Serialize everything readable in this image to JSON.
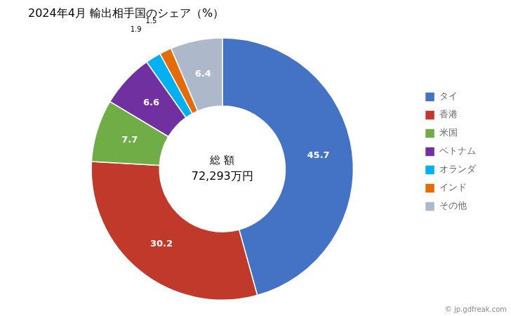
{
  "chart_data": {
    "type": "doughnut",
    "title": "2024年4月 輸出相手国のシェア（%）",
    "categories": [
      "タイ",
      "香港",
      "米国",
      "ベトナム",
      "オランダ",
      "インド",
      "その他"
    ],
    "values": [
      45.7,
      30.2,
      7.7,
      6.6,
      1.9,
      1.5,
      6.4
    ],
    "colors": [
      "#4472C4",
      "#C0392B",
      "#70AD47",
      "#7030A0",
      "#00B0F0",
      "#E36C09",
      "#ADB9CA"
    ],
    "data_labels": true,
    "legend": "right",
    "center_text": [
      "総 額",
      "72,293万円"
    ],
    "annotations": [
      "© jp.gdfreak.com"
    ]
  }
}
